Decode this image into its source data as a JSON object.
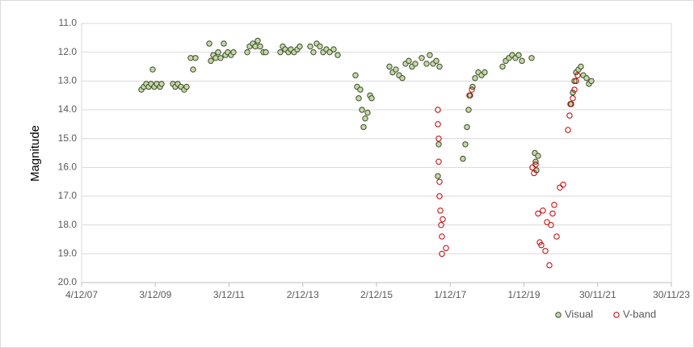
{
  "chart_data": {
    "type": "scatter",
    "y_label": "Magnitude",
    "xlim": [
      39420,
      45260
    ],
    "xticks": [
      {
        "value": 39420,
        "label": "4/12/07"
      },
      {
        "value": 40150,
        "label": "3/12/09"
      },
      {
        "value": 40880,
        "label": "3/12/11"
      },
      {
        "value": 41610,
        "label": "2/12/13"
      },
      {
        "value": 42340,
        "label": "2/12/15"
      },
      {
        "value": 43070,
        "label": "1/12/17"
      },
      {
        "value": 43800,
        "label": "1/12/19"
      },
      {
        "value": 44530,
        "label": "30/11/21"
      },
      {
        "value": 45260,
        "label": "30/11/23"
      }
    ],
    "ylim": [
      20,
      11
    ],
    "yticks": [
      {
        "value": 11,
        "label": "11.0"
      },
      {
        "value": 12,
        "label": "12.0"
      },
      {
        "value": 13,
        "label": "13.0"
      },
      {
        "value": 14,
        "label": "14.0"
      },
      {
        "value": 15,
        "label": "15.0"
      },
      {
        "value": 16,
        "label": "16.0"
      },
      {
        "value": 17,
        "label": "17.0"
      },
      {
        "value": 18,
        "label": "18.0"
      },
      {
        "value": 19,
        "label": "19.0"
      },
      {
        "value": 20,
        "label": "20.0"
      }
    ],
    "grid": true,
    "legend": "bottom-right",
    "series": [
      {
        "name": "Visual",
        "color": "#3b4a2c",
        "fill": "#c5d8a6",
        "x": [
          40012,
          40036,
          40060,
          40084,
          40108,
          40124,
          40140,
          40164,
          40196,
          40212,
          40324,
          40348,
          40372,
          40404,
          40436,
          40460,
          40500,
          40524,
          40548,
          40684,
          40700,
          40724,
          40748,
          40772,
          40796,
          40828,
          40844,
          40868,
          40900,
          40924,
          41060,
          41084,
          41116,
          41140,
          41164,
          41188,
          41220,
          41244,
          41388,
          41412,
          41436,
          41468,
          41492,
          41524,
          41556,
          41580,
          41684,
          41716,
          41748,
          41780,
          41812,
          41844,
          41876,
          41916,
          41956,
          42132,
          42148,
          42164,
          42180,
          42196,
          42212,
          42228,
          42252,
          42276,
          42292,
          42468,
          42500,
          42532,
          42564,
          42596,
          42628,
          42660,
          42692,
          42724,
          42788,
          42836,
          42868,
          42900,
          42932,
          42948,
          42956,
          42964,
          43196,
          43220,
          43236,
          43252,
          43268,
          43292,
          43316,
          43348,
          43380,
          43412,
          43588,
          43620,
          43652,
          43684,
          43716,
          43748,
          43780,
          43876,
          43908,
          43916,
          43924,
          43940,
          44260,
          44284,
          44300,
          44316,
          44340,
          44364,
          44388,
          44420,
          44444,
          44468
        ],
        "values": [
          13.3,
          13.2,
          13.1,
          13.2,
          13.1,
          12.6,
          13.2,
          13.1,
          13.2,
          13.1,
          13.1,
          13.2,
          13.1,
          13.2,
          13.3,
          13.2,
          12.2,
          12.6,
          12.2,
          11.7,
          12.3,
          12.1,
          12.2,
          12.0,
          12.2,
          11.7,
          12.1,
          12.0,
          12.1,
          12.0,
          12.0,
          11.8,
          11.7,
          11.8,
          11.6,
          11.8,
          12.0,
          12.0,
          12.0,
          11.8,
          11.9,
          12.0,
          11.9,
          12.0,
          11.9,
          11.8,
          11.8,
          12.0,
          11.7,
          11.8,
          12.0,
          11.9,
          12.0,
          11.9,
          12.1,
          12.8,
          13.2,
          13.6,
          13.3,
          14.0,
          14.6,
          14.3,
          14.1,
          13.5,
          13.6,
          12.5,
          12.7,
          12.6,
          12.8,
          12.9,
          12.4,
          12.3,
          12.5,
          12.4,
          12.2,
          12.4,
          12.1,
          12.4,
          12.3,
          16.3,
          15.2,
          12.5,
          15.7,
          15.2,
          14.6,
          14.0,
          13.5,
          13.2,
          12.9,
          12.7,
          12.8,
          12.7,
          12.5,
          12.3,
          12.2,
          12.1,
          12.2,
          12.1,
          12.3,
          12.2,
          15.5,
          15.8,
          16.1,
          15.6,
          13.8,
          13.4,
          13.0,
          12.7,
          12.6,
          12.5,
          12.8,
          12.9,
          13.1,
          13.0
        ]
      },
      {
        "name": "V-band",
        "color": "#c00000",
        "fill": "none",
        "x": [
          42948,
          42948,
          42956,
          42956,
          42964,
          42964,
          42972,
          42980,
          42988,
          42988,
          42996,
          43028,
          43260,
          43284,
          43884,
          43900,
          43916,
          43940,
          43956,
          43972,
          43988,
          44012,
          44028,
          44052,
          44068,
          44084,
          44100,
          44124,
          44156,
          44188,
          44236,
          44252,
          44268,
          44284,
          44300,
          44316,
          44332
        ],
        "values": [
          14.0,
          14.5,
          15.0,
          15.8,
          16.5,
          17.0,
          17.5,
          18.0,
          18.4,
          19.0,
          17.8,
          18.8,
          13.5,
          13.3,
          16.0,
          16.2,
          15.9,
          17.6,
          18.6,
          18.7,
          17.5,
          18.9,
          17.9,
          19.4,
          18.0,
          17.6,
          17.3,
          18.4,
          16.7,
          16.6,
          14.7,
          14.2,
          13.8,
          13.6,
          13.3,
          13.0,
          12.8
        ]
      }
    ]
  }
}
